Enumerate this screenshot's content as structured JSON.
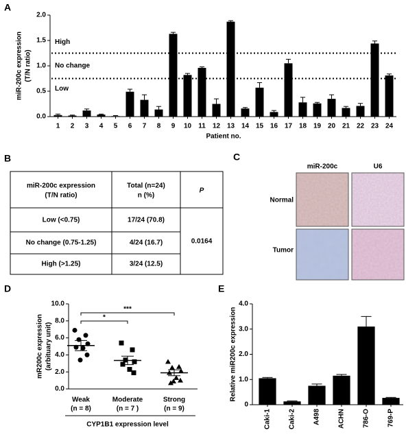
{
  "panel_labels": [
    "A",
    "B",
    "C",
    "D",
    "E"
  ],
  "chart_data": [
    {
      "type": "bar",
      "color": "#000000",
      "ylabel": [
        "miR-200c expression",
        "(T/N ratio)"
      ],
      "xlabel": "Patient no.",
      "categories": [
        "1",
        "2",
        "3",
        "4",
        "5",
        "6",
        "7",
        "8",
        "9",
        "10",
        "11",
        "12",
        "13",
        "14",
        "15",
        "16",
        "17",
        "18",
        "19",
        "20",
        "21",
        "22",
        "23",
        "24"
      ],
      "values": [
        0.03,
        0.02,
        0.12,
        0.04,
        0.01,
        0.49,
        0.33,
        0.14,
        1.63,
        0.82,
        0.96,
        0.25,
        1.87,
        0.16,
        0.57,
        0.09,
        1.05,
        0.28,
        0.26,
        0.35,
        0.17,
        0.21,
        1.44,
        0.81
      ],
      "errors": [
        0.02,
        0.01,
        0.03,
        0.01,
        0.01,
        0.05,
        0.1,
        0.06,
        0.03,
        0.03,
        0.02,
        0.1,
        0.02,
        0.02,
        0.1,
        0.03,
        0.08,
        0.1,
        0.02,
        0.08,
        0.03,
        0.05,
        0.05,
        0.03
      ],
      "ylim": [
        0,
        2.0
      ],
      "yticks": [
        {
          "value": 0,
          "label": "0.0"
        },
        0.5,
        {
          "value": 1,
          "label": "1.0"
        },
        1.5,
        {
          "value": 2,
          "label": "2.0"
        }
      ],
      "reference_lines": [
        1.25,
        0.75
      ],
      "annotations": [
        "High",
        "No change",
        "Low"
      ]
    },
    {
      "type": "scatter",
      "ylabel": [
        "mR200c expression",
        "(arbituary unit)"
      ],
      "xlabel": "CYP1B1 expression level",
      "categories": [
        "Weak",
        "Moderate",
        "Strong"
      ],
      "category_notes": [
        "(n = 8)",
        "(n = 7 )",
        "(n = 9)"
      ],
      "markers": [
        "circle",
        "square",
        "triangle"
      ],
      "points": [
        [
          6.9,
          6.3,
          5.8,
          5.3,
          4.9,
          4.8,
          4.0,
          3.4
        ],
        [
          5.4,
          4.6,
          3.4,
          3.2,
          2.9,
          2.3,
          1.9
        ],
        [
          3.2,
          2.6,
          2.5,
          2.1,
          1.9,
          1.3,
          1.0,
          0.9,
          0.7
        ]
      ],
      "means": [
        5.1,
        3.35,
        1.9
      ],
      "sems": [
        0.6,
        0.5,
        0.35
      ],
      "ylim": [
        0,
        10
      ],
      "yticks": [
        {
          "value": 0,
          "label": "0.0"
        },
        {
          "value": 2,
          "label": "2.0"
        },
        {
          "value": 4,
          "label": "4.0"
        },
        {
          "value": 6,
          "label": "6.0"
        },
        {
          "value": 8,
          "label": "8.0"
        },
        {
          "value": 10,
          "label": "10.0"
        }
      ],
      "significance": [
        "*",
        "***"
      ]
    },
    {
      "type": "bar",
      "color": "#000000",
      "ylabel": [
        "Relative miR200c expression"
      ],
      "categories": [
        "Caki-1",
        "Caki-2",
        "A498",
        "ACHN",
        "786-O",
        "769-P"
      ],
      "values": [
        1.05,
        0.13,
        0.75,
        1.15,
        3.1,
        0.27
      ],
      "errors": [
        0.03,
        0.02,
        0.07,
        0.05,
        0.4,
        0.02
      ],
      "ylim": [
        0,
        4.0
      ],
      "yticks": [
        0,
        {
          "value": 1,
          "label": "1.0"
        },
        {
          "value": 2,
          "label": "2.0"
        },
        {
          "value": 3,
          "label": "3.0"
        },
        {
          "value": 4,
          "label": "4.0"
        }
      ]
    }
  ],
  "table": {
    "header": [
      [
        "miR-200c expression",
        "(T/N ratio)"
      ],
      [
        "Total (n=24)",
        "n (%)"
      ],
      [
        "P"
      ]
    ],
    "rows": [
      [
        "Low (<0.75)",
        "17/24 (70.8)"
      ],
      [
        "No change (0.75-1.25)",
        "4/24 (16.7)"
      ],
      [
        "High (>1.25)",
        "3/24 (12.5)"
      ]
    ],
    "p_value": "0.0164"
  },
  "images": {
    "columns": [
      "miR-200c",
      "U6"
    ],
    "rows": [
      "Normal",
      "Tumor"
    ]
  }
}
